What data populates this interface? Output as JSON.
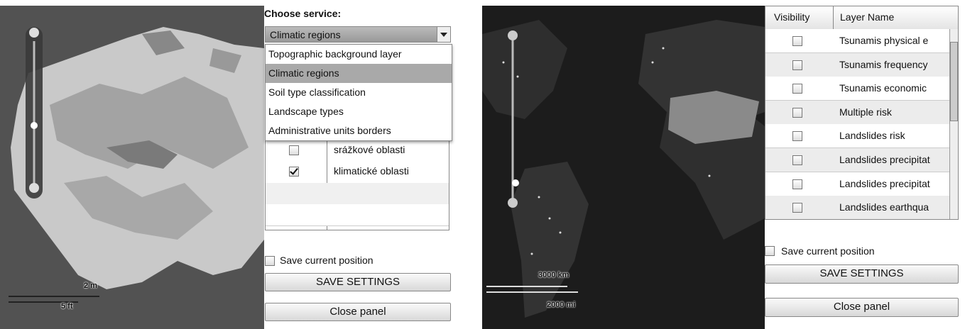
{
  "left_app": {
    "service_label": "Choose service:",
    "selected_service": "Climatic regions",
    "options": [
      "Topographic background layer",
      "Climatic regions",
      "Soil type classification",
      "Landscape types",
      "Administrative units borders"
    ],
    "highlighted_option": 1,
    "layers": [
      {
        "name": "srážkové oblasti",
        "checked": false
      },
      {
        "name": "klimatické oblasti",
        "checked": true
      }
    ],
    "save_position": "Save current position",
    "save_button": "SAVE SETTINGS",
    "close_button": "Close panel",
    "scale": {
      "metric": "2 m",
      "imperial": "5 ft"
    }
  },
  "right_app": {
    "headers": [
      "Visibility",
      "Layer Name"
    ],
    "layers": [
      {
        "name": "Tsunamis physical e",
        "checked": false
      },
      {
        "name": "Tsunamis frequency",
        "checked": false
      },
      {
        "name": "Tsunamis economic",
        "checked": false
      },
      {
        "name": "Multiple risk",
        "checked": false
      },
      {
        "name": "Landslides risk",
        "checked": false
      },
      {
        "name": "Landslides precipitat",
        "checked": false
      },
      {
        "name": "Landslides precipitat",
        "checked": false
      },
      {
        "name": "Landslides earthqua",
        "checked": false
      }
    ],
    "save_position": "Save current position",
    "save_button": "SAVE SETTINGS",
    "close_button": "Close panel",
    "scale": {
      "metric": "3000 km",
      "imperial": "2000 mi"
    }
  }
}
